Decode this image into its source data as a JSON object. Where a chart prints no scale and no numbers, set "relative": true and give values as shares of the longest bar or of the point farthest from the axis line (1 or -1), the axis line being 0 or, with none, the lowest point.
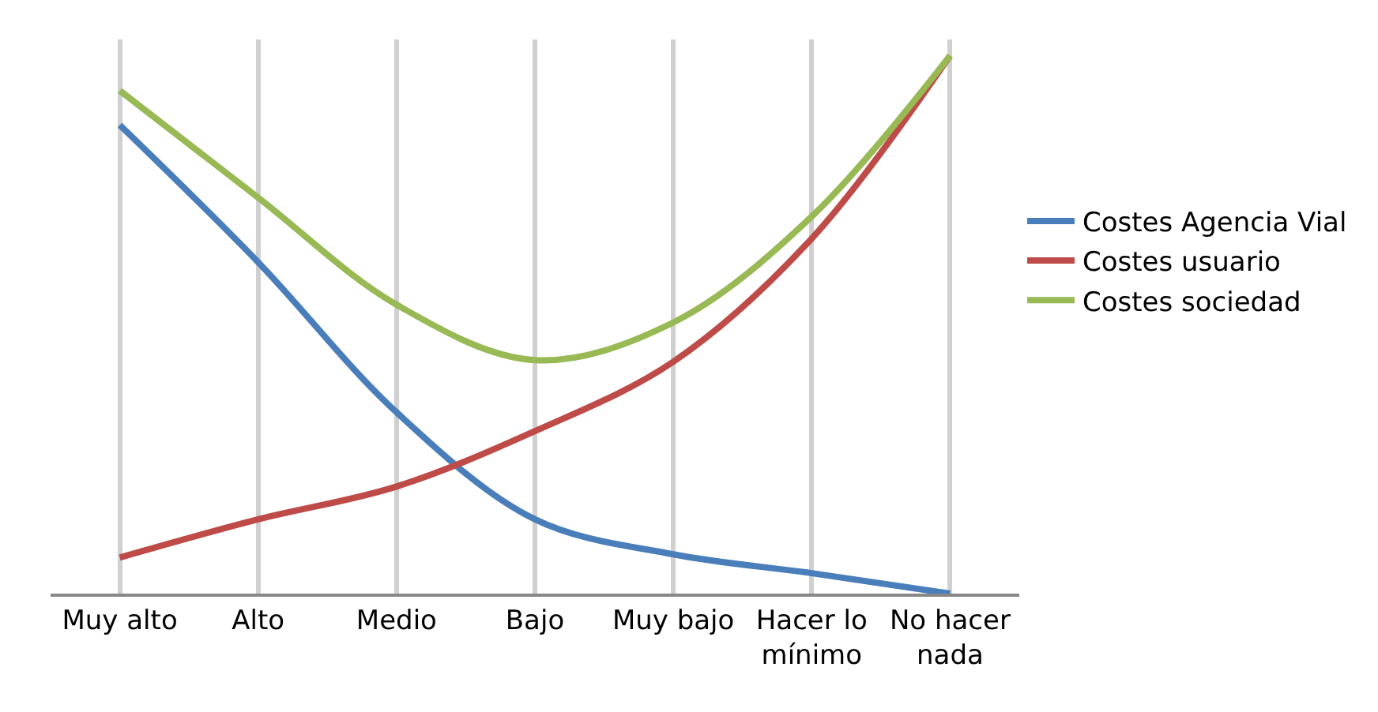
{
  "chart_data": {
    "type": "line",
    "relative": true,
    "categories": [
      "Muy alto",
      "Alto",
      "Medio",
      "Bajo",
      "Muy bajo",
      "Hacer lo\nmínimo",
      "No hacer\nnada"
    ],
    "series": [
      {
        "name": "Costes Agencia Vial",
        "color": "#4a7ebb",
        "values": [
          0.871,
          0.616,
          0.337,
          0.138,
          0.073,
          0.038,
          0
        ]
      },
      {
        "name": "Costes usuario",
        "color": "#be4b48",
        "values": [
          0.067,
          0.138,
          0.199,
          0.302,
          0.431,
          0.66,
          1
        ]
      },
      {
        "name": "Costes sociedad",
        "color": "#98b954",
        "values": [
          0.935,
          0.736,
          0.537,
          0.434,
          0.504,
          0.701,
          1
        ]
      }
    ],
    "grid": "x",
    "legend": "right",
    "marker": "none",
    "line_style": "solid"
  }
}
